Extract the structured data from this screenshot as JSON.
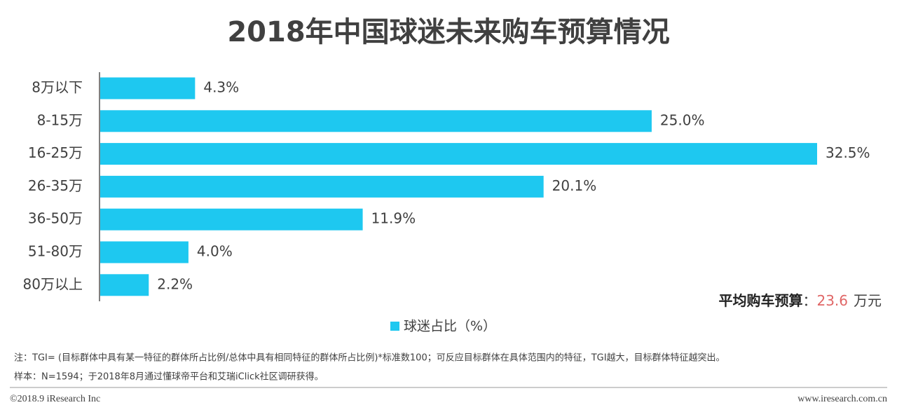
{
  "chart_data": {
    "type": "bar",
    "orientation": "horizontal",
    "title": "2018年中国球迷未来购车预算情况",
    "categories": [
      "8万以下",
      "8-15万",
      "16-25万",
      "26-35万",
      "36-50万",
      "51-80万",
      "80万以上"
    ],
    "series": [
      {
        "name": "球迷占比（%）",
        "color": "#1ec8f0",
        "values": [
          4.3,
          25.0,
          32.5,
          20.1,
          11.9,
          4.0,
          2.2
        ],
        "value_labels": [
          "4.3%",
          "25.0%",
          "32.5%",
          "20.1%",
          "11.9%",
          "4.0%",
          "2.2%"
        ]
      }
    ],
    "annotation": {
      "label": "平均购车预算",
      "separator": "：",
      "value": 23.6,
      "unit": "万元"
    }
  },
  "notes": [
    "注：TGI= (目标群体中具有某一特征的群体所占比例/总体中具有相同特征的群体所占比例)*标准数100；可反应目标群体在具体范围内的特征，TGI越大，目标群体特征越突出。",
    "样本：N=1594；于2018年8月通过懂球帝平台和艾瑞iClick社区调研获得。"
  ],
  "footer": {
    "left": "©2018.9 iResearch Inc",
    "right": "www.iresearch.com.cn"
  }
}
